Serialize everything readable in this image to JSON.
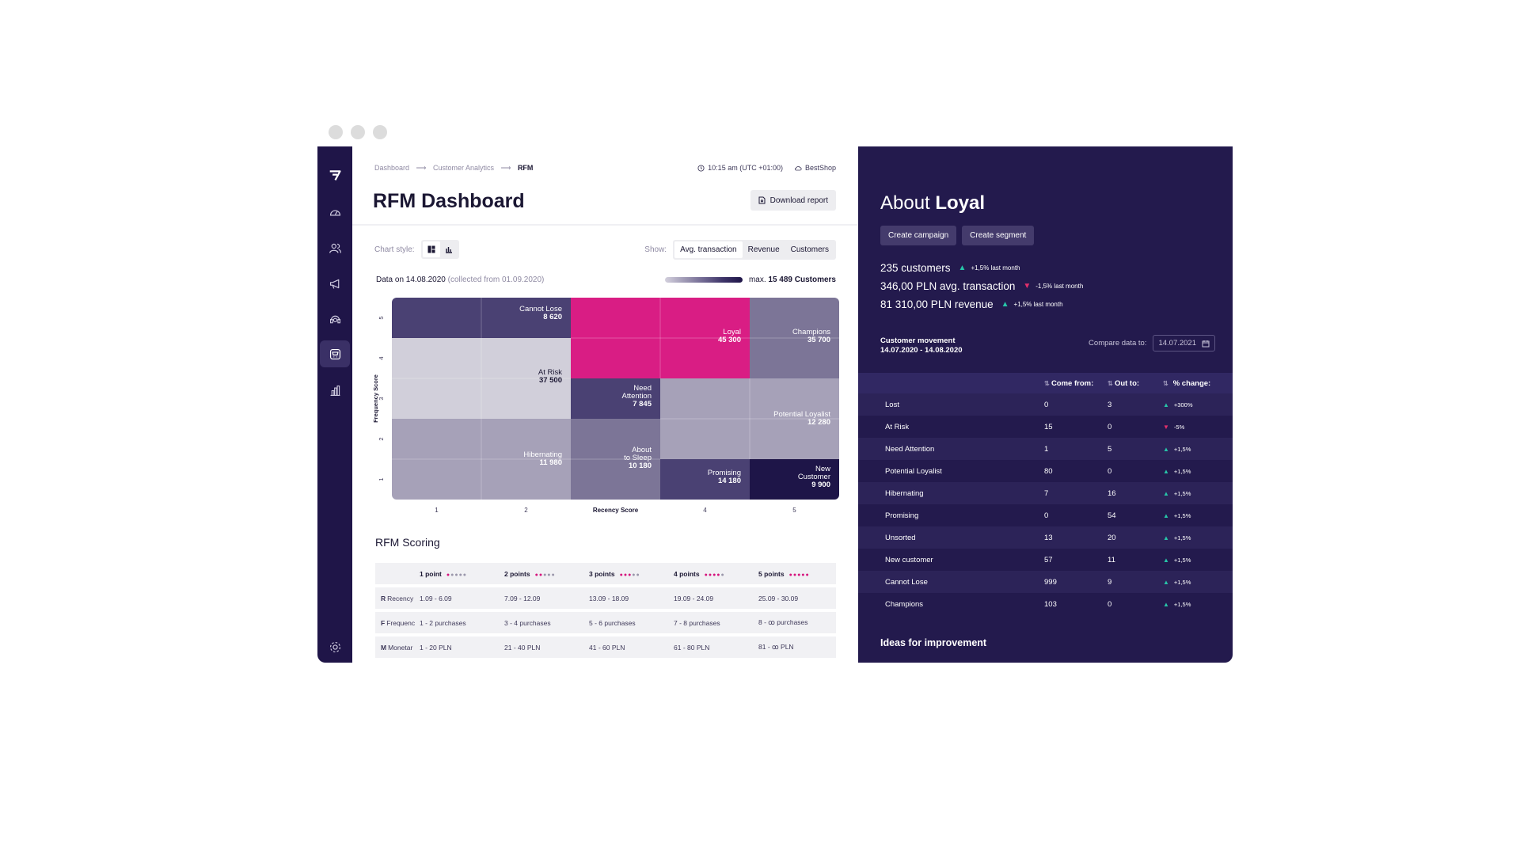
{
  "window": {
    "controls": [
      "close",
      "minimize",
      "maximize"
    ]
  },
  "sidebar": {
    "logo": "brand-logo-icon",
    "items": [
      {
        "icon": "dashboard-gauge-icon",
        "active": false
      },
      {
        "icon": "users-icon",
        "active": false
      },
      {
        "icon": "megaphone-icon",
        "active": false
      },
      {
        "icon": "support-agent-icon",
        "active": false
      },
      {
        "icon": "cart-icon",
        "active": true
      },
      {
        "icon": "bar-chart-icon",
        "active": false
      }
    ],
    "settings_icon": "gear-icon"
  },
  "header": {
    "breadcrumb": [
      "Dashboard",
      "Customer Analytics",
      "RFM"
    ],
    "breadcrumb_sep": "⟶",
    "time": "10:15 am (UTC +01:00)",
    "shop": "BestShop",
    "title": "RFM Dashboard",
    "download_label": "Download report"
  },
  "controls": {
    "chart_style_label": "Chart style:",
    "show_label": "Show:",
    "show_options": [
      "Avg. transaction",
      "Revenue",
      "Customers"
    ],
    "show_selected": "Avg. transaction"
  },
  "data_info": {
    "date_label": "Data on 14.08.2020",
    "collected": "(collected from 01.09.2020)",
    "max_prefix": "max.",
    "max_value": "15 489 Customers"
  },
  "chart_data": {
    "type": "heatmap",
    "xlabel": "Recency Score",
    "ylabel": "Frequency Score",
    "x_ticks": [
      "1",
      "2",
      "Recency Score",
      "4",
      "5"
    ],
    "y_ticks": [
      "5",
      "4",
      "3",
      "2",
      "1"
    ],
    "segments": [
      {
        "name": "Cannot Lose",
        "value": "8 620",
        "recency": [
          1,
          2
        ],
        "frequency": [
          5,
          5
        ],
        "color": "#4a4173"
      },
      {
        "name": "Loyal",
        "value": "45 300",
        "recency": [
          3,
          4
        ],
        "frequency": [
          4,
          5
        ],
        "color": "#d91d84"
      },
      {
        "name": "Champions",
        "value": "35 700",
        "recency": [
          5,
          5
        ],
        "frequency": [
          4,
          5
        ],
        "color": "#7c7597"
      },
      {
        "name": "At Risk",
        "value": "37 500",
        "recency": [
          1,
          2
        ],
        "frequency": [
          3,
          4
        ],
        "color": "#d1cfda"
      },
      {
        "name": "Need Attention",
        "value": "7 845",
        "recency": [
          3,
          3
        ],
        "frequency": [
          3,
          3
        ],
        "color": "#4a4173"
      },
      {
        "name": "Potential Loyalist",
        "value": "12 280",
        "recency": [
          4,
          5
        ],
        "frequency": [
          2,
          3
        ],
        "color": "#a6a1b8"
      },
      {
        "name": "Hibernating",
        "value": "11 980",
        "recency": [
          1,
          2
        ],
        "frequency": [
          1,
          2
        ],
        "color": "#a6a1b8"
      },
      {
        "name": "About to Sleep",
        "value": "10 180",
        "recency": [
          3,
          3
        ],
        "frequency": [
          1,
          2
        ],
        "color": "#7c7597"
      },
      {
        "name": "Promising",
        "value": "14 180",
        "recency": [
          4,
          4
        ],
        "frequency": [
          1,
          1
        ],
        "color": "#4a4173"
      },
      {
        "name": "New Customer",
        "value": "9 900",
        "recency": [
          5,
          5
        ],
        "frequency": [
          1,
          1
        ],
        "color": "#1e1548"
      }
    ]
  },
  "scoring": {
    "title": "RFM Scoring",
    "headers": [
      {
        "label": "1 point",
        "filled": 1
      },
      {
        "label": "2 points",
        "filled": 2
      },
      {
        "label": "3 points",
        "filled": 3
      },
      {
        "label": "4 points",
        "filled": 4
      },
      {
        "label": "5 points",
        "filled": 5
      }
    ],
    "rows": [
      {
        "letter": "R",
        "name": "Recency",
        "cells": [
          "1.09 - 6.09",
          "7.09 - 12.09",
          "13.09 - 18.09",
          "19.09 - 24.09",
          "25.09 - 30.09"
        ]
      },
      {
        "letter": "F",
        "name": "Frequenc",
        "cells": [
          "1 - 2 purchases",
          "3 - 4 purchases",
          "5 - 6 purchases",
          "7 - 8 purchases",
          "8 - ꝏ purchases"
        ]
      },
      {
        "letter": "M",
        "name": "Monetar",
        "cells": [
          "1 - 20 PLN",
          "21 - 40 PLN",
          "41 - 60 PLN",
          "61 - 80 PLN",
          "81 - ꝏ PLN"
        ]
      }
    ]
  },
  "panel": {
    "about_prefix": "About",
    "about_segment": "Loyal",
    "buttons": [
      "Create campaign",
      "Create segment"
    ],
    "stats": [
      {
        "text": "235 customers",
        "dir": "up",
        "change": "+1,5% last month"
      },
      {
        "text": "346,00 PLN avg. transaction",
        "dir": "down",
        "change": "-1,5% last month"
      },
      {
        "text": "81 310,00 PLN revenue",
        "dir": "up",
        "change": "+1,5% last month"
      }
    ],
    "movement_title": "Customer movement",
    "movement_range": "14.07.2020 - 14.08.2020",
    "compare_label": "Compare data to:",
    "compare_date": "14.07.2021",
    "table_headers": [
      "Come from:",
      "Out to:",
      "% change:"
    ],
    "table_rows": [
      {
        "name": "Lost",
        "from": "0",
        "out": "3",
        "dir": "up",
        "change": "+300%"
      },
      {
        "name": "At Risk",
        "from": "15",
        "out": "0",
        "dir": "down",
        "change": "-5%"
      },
      {
        "name": "Need Attention",
        "from": "1",
        "out": "5",
        "dir": "up",
        "change": "+1,5%"
      },
      {
        "name": "Potential Loyalist",
        "from": "80",
        "out": "0",
        "dir": "up",
        "change": "+1,5%"
      },
      {
        "name": "Hibernating",
        "from": "7",
        "out": "16",
        "dir": "up",
        "change": "+1,5%"
      },
      {
        "name": "Promising",
        "from": "0",
        "out": "54",
        "dir": "up",
        "change": "+1,5%"
      },
      {
        "name": "Unsorted",
        "from": "13",
        "out": "20",
        "dir": "up",
        "change": "+1,5%"
      },
      {
        "name": "New customer",
        "from": "57",
        "out": "11",
        "dir": "up",
        "change": "+1,5%"
      },
      {
        "name": "Cannot Lose",
        "from": "999",
        "out": "9",
        "dir": "up",
        "change": "+1,5%"
      },
      {
        "name": "Champions",
        "from": "103",
        "out": "0",
        "dir": "up",
        "change": "+1,5%"
      }
    ],
    "ideas_title": "Ideas for improvement"
  }
}
